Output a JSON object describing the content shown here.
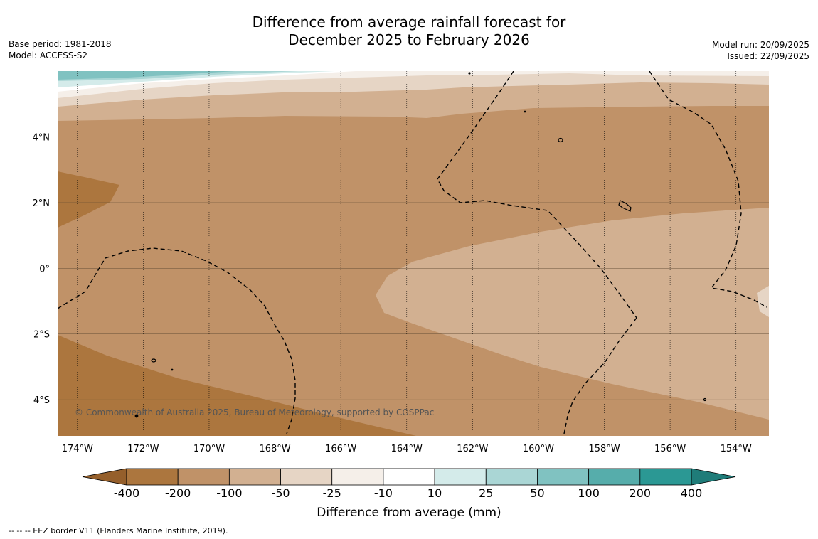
{
  "title_line1": "Difference from average rainfall forecast for",
  "title_line2": "December 2025 to February 2026",
  "base_period": "Base period: 1981-2018",
  "model": "Model: ACCESS-S2",
  "model_run": "Model run: 20/09/2025",
  "issued": "Issued: 22/09/2025",
  "copyright": "© Commonwealth of Australia 2025, Bureau of Meteorology, supported by COSPPac",
  "footer_note": "--  --  -- EEZ border V11 (Flanders Marine Institute, 2019).",
  "map": {
    "lon_min": -174.6,
    "lon_max": -153.0,
    "lat_min": -5.1,
    "lat_max": 6.0,
    "lat_ticks": [
      {
        "value": 4,
        "label": "4°N"
      },
      {
        "value": 2,
        "label": "2°N"
      },
      {
        "value": 0,
        "label": "0°"
      },
      {
        "value": -2,
        "label": "2°S"
      },
      {
        "value": -4,
        "label": "4°S"
      }
    ],
    "lon_ticks": [
      {
        "value": -174,
        "label": "174°W"
      },
      {
        "value": -172,
        "label": "172°W"
      },
      {
        "value": -170,
        "label": "170°W"
      },
      {
        "value": -168,
        "label": "168°W"
      },
      {
        "value": -166,
        "label": "166°W"
      },
      {
        "value": -164,
        "label": "164°W"
      },
      {
        "value": -162,
        "label": "162°W"
      },
      {
        "value": -160,
        "label": "160°W"
      },
      {
        "value": -158,
        "label": "158°W"
      },
      {
        "value": -156,
        "label": "156°W"
      },
      {
        "value": -154,
        "label": "154°W"
      }
    ]
  },
  "colorbar": {
    "title": "Difference from average (mm)",
    "labels": [
      "-400",
      "-200",
      "-100",
      "-50",
      "-25",
      "-10",
      "10",
      "25",
      "50",
      "100",
      "200",
      "400"
    ],
    "bin_colors": [
      "#ac763e",
      "#c09268",
      "#d2b091",
      "#e6d5c5",
      "#f5efe9",
      "#ffffff",
      "#d4ebea",
      "#aad6d5",
      "#80c2c1",
      "#56adab",
      "#2b9894"
    ],
    "under_color": "#955f2b",
    "over_color": "#1f7c79"
  }
}
